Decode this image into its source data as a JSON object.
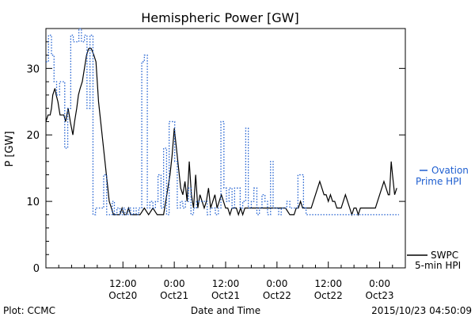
{
  "chart_data": {
    "type": "line",
    "title": "Hemispheric Power [GW]",
    "ylabel": "P [GW]",
    "xlabel": "Date and Time",
    "ylim": [
      0,
      36
    ],
    "xlim_hours": "2015-10-19 18:00 to 2015-10-23 06:00 UTC",
    "yticks": [
      0,
      10,
      20,
      30
    ],
    "xticks": [
      {
        "time": "2015-10-20 12:00",
        "top": "12:00",
        "bottom": "Oct20"
      },
      {
        "time": "2015-10-21 00:00",
        "top": "0:00",
        "bottom": "Oct21"
      },
      {
        "time": "2015-10-21 12:00",
        "top": "12:00",
        "bottom": "Oct21"
      },
      {
        "time": "2015-10-22 00:00",
        "top": "0:00",
        "bottom": "Oct22"
      },
      {
        "time": "2015-10-22 12:00",
        "top": "12:00",
        "bottom": "Oct22"
      },
      {
        "time": "2015-10-23 00:00",
        "top": "0:00",
        "bottom": "Oct23"
      }
    ],
    "series": [
      {
        "name": "SWPC 5-min HPI",
        "color": "#000000",
        "style": "solid",
        "legend": [
          "SWPC",
          "5-min HPI"
        ],
        "t_hours": [
          0,
          0.5,
          1,
          1.3,
          1.6,
          2.1,
          2.4,
          2.8,
          3.3,
          3.7,
          4.2,
          4.6,
          5.2,
          5.7,
          6.3,
          6.7,
          7.2,
          7.6,
          8,
          8.5,
          9,
          9.5,
          10,
          10.6,
          11.2,
          11.7,
          12.3,
          12.8,
          13.3,
          13.8,
          14.3,
          14.8,
          15.3,
          15.8,
          16.3,
          16.8,
          17.3,
          17.8,
          18.3,
          18.8,
          19.3,
          19.8,
          20.3,
          21,
          22,
          23,
          24,
          25,
          26,
          27,
          27.5,
          28,
          28.5,
          29,
          29.5,
          30,
          30.5,
          31,
          31.5,
          32,
          32.5,
          33,
          33.5,
          34,
          34.5,
          35,
          35.5,
          36,
          36.5,
          37,
          37.5,
          38,
          38.5,
          39,
          39.5,
          40,
          40.5,
          41,
          41.5,
          42,
          42.5,
          43,
          43.5,
          44,
          44.5,
          45,
          45.5,
          46,
          46.5,
          47,
          47.5,
          48,
          49,
          50,
          51,
          52,
          53,
          54,
          55,
          56,
          57,
          57.5,
          58,
          58.5,
          59,
          59.5,
          60,
          60.5,
          61,
          61.5,
          62,
          62.5,
          63,
          63.5,
          64,
          64.5,
          65,
          65.5,
          66,
          66.5,
          67,
          67.5,
          68,
          68.5,
          69,
          69.5,
          70,
          70.5,
          71,
          71.5,
          72,
          72.5,
          73,
          73.5,
          74,
          74.5,
          75,
          75.5,
          76,
          76.5,
          77,
          77.5,
          78,
          78.5,
          79,
          79.5,
          80,
          80.3,
          80.7,
          81,
          81.5,
          82
        ],
        "values": [
          22,
          23,
          23,
          24,
          26,
          27,
          26,
          25,
          23,
          23,
          23,
          22,
          24,
          22,
          20,
          22,
          24,
          26,
          27,
          28,
          30,
          32,
          33,
          33,
          32,
          31,
          25,
          22,
          19,
          16,
          13,
          10,
          9,
          8,
          8,
          8,
          8,
          9,
          8,
          8,
          9,
          8,
          8,
          8,
          8,
          9,
          8,
          9,
          8,
          8,
          8,
          10,
          12,
          14,
          17,
          21,
          18,
          15,
          12,
          11,
          13,
          10,
          16,
          11,
          9,
          14,
          9,
          11,
          10,
          9,
          10,
          12,
          9,
          10,
          11,
          9,
          10,
          11,
          10,
          9,
          9,
          8,
          9,
          9,
          9,
          8,
          9,
          8,
          9,
          9,
          9,
          9,
          9,
          9,
          9,
          9,
          9,
          9,
          9,
          9,
          8,
          8,
          8,
          9,
          9,
          10,
          9,
          9,
          9,
          9,
          9,
          10,
          11,
          12,
          13,
          12,
          11,
          11,
          10,
          11,
          10,
          10,
          9,
          9,
          9,
          10,
          11,
          10,
          9,
          8,
          9,
          9,
          8,
          9,
          9,
          9,
          9,
          9,
          9,
          9,
          9,
          10,
          11,
          12,
          13,
          12,
          11,
          11,
          16,
          14,
          11,
          12,
          10
        ]
      },
      {
        "name": "Ovation Prime HPI",
        "color": "#1f5fd0",
        "style": "dotted",
        "legend": [
          "Ovation",
          "Prime HPI"
        ],
        "t_hours": [
          0,
          0.6,
          1.3,
          1.9,
          2.5,
          3.2,
          3.8,
          4.4,
          5.1,
          5.8,
          6.4,
          7,
          7.7,
          8.3,
          9,
          9.6,
          10.3,
          11,
          11.6,
          12.3,
          12.9,
          13.5,
          14.2,
          14.8,
          15.5,
          16,
          16.6,
          17.3,
          17.9,
          18.5,
          19.2,
          19.8,
          20.5,
          21.1,
          21.7,
          22.4,
          23,
          23.7,
          24.3,
          25,
          25.6,
          26.2,
          26.9,
          27.5,
          28.2,
          28.8,
          29.4,
          30.1,
          30.7,
          31.4,
          32,
          32.6,
          33.3,
          33.9,
          34.5,
          35.2,
          35.8,
          36.5,
          37.1,
          37.7,
          38.4,
          39,
          39.6,
          40.3,
          40.9,
          41.6,
          42.2,
          42.8,
          43.5,
          44.1,
          44.8,
          45.4,
          46,
          46.7,
          47.3,
          48,
          48.6,
          49.3,
          49.9,
          50.5,
          51.2,
          51.8,
          52.5,
          53.1,
          53.7,
          54.4,
          55,
          55.7,
          56.3,
          57,
          57.6,
          58.2,
          58.9,
          59.5,
          60.2,
          60.8,
          61.4,
          62.1,
          62.7,
          63.4,
          64,
          64.6,
          65.3,
          65.9,
          66.6,
          67.2,
          67.8,
          68.5,
          69.1,
          69.8,
          70.4,
          71,
          71.7,
          72.3,
          73,
          73.6,
          74.2,
          74.9,
          75.5,
          76.2,
          76.8,
          77.4,
          78.1,
          78.7,
          79.4,
          80,
          80.6,
          81.3,
          81.9
        ],
        "values": [
          31,
          35,
          32,
          28,
          26,
          28,
          28,
          18,
          24,
          35,
          34,
          34,
          36,
          34,
          35,
          24,
          35,
          8,
          9,
          9,
          9,
          14,
          8,
          8,
          10,
          8,
          9,
          8,
          9,
          8,
          9,
          8,
          9,
          8,
          9,
          31,
          32,
          9,
          10,
          9,
          10,
          14,
          9,
          18,
          8,
          22,
          22,
          16,
          9,
          10,
          9,
          10,
          12,
          8,
          9,
          10,
          10,
          10,
          10,
          8,
          9,
          9,
          8,
          9,
          22,
          12,
          10,
          12,
          9,
          12,
          12,
          9,
          10,
          21,
          9,
          10,
          12,
          8,
          9,
          11,
          10,
          8,
          16,
          9,
          9,
          8,
          9,
          9,
          10,
          9,
          9,
          9,
          14,
          14,
          9,
          8,
          8,
          8,
          8,
          8,
          8,
          8,
          8,
          8,
          8,
          8,
          8,
          8,
          8,
          8,
          8,
          8,
          8,
          8,
          8,
          8,
          8,
          8,
          8,
          8,
          8,
          8,
          8,
          8,
          8,
          8,
          8,
          8,
          8,
          8
        ]
      }
    ]
  },
  "labels": {
    "title": "Hemispheric Power [GW]",
    "ylabel": "P [GW]",
    "xlabel": "Date and Time",
    "footer_left": "Plot: CCMC",
    "footer_right": "2015/10/23 04:50:09",
    "legend_ovation_1": "Ovation",
    "legend_ovation_2": "Prime HPI",
    "legend_swpc_1": "SWPC",
    "legend_swpc_2": "5-min HPI"
  }
}
